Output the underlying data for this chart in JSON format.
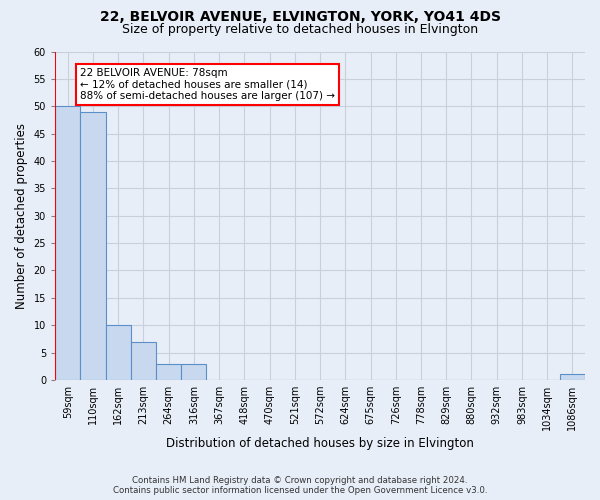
{
  "title": "22, BELVOIR AVENUE, ELVINGTON, YORK, YO41 4DS",
  "subtitle": "Size of property relative to detached houses in Elvington",
  "xlabel": "Distribution of detached houses by size in Elvington",
  "ylabel": "Number of detached properties",
  "bins": [
    "59sqm",
    "110sqm",
    "162sqm",
    "213sqm",
    "264sqm",
    "316sqm",
    "367sqm",
    "418sqm",
    "470sqm",
    "521sqm",
    "572sqm",
    "624sqm",
    "675sqm",
    "726sqm",
    "778sqm",
    "829sqm",
    "880sqm",
    "932sqm",
    "983sqm",
    "1034sqm",
    "1086sqm"
  ],
  "values": [
    50,
    49,
    10,
    7,
    3,
    3,
    0,
    0,
    0,
    0,
    0,
    0,
    0,
    0,
    0,
    0,
    0,
    0,
    0,
    0,
    1
  ],
  "bar_color": "#c8d9ef",
  "bar_edge_color": "#5b8fc9",
  "ylim": [
    0,
    60
  ],
  "yticks": [
    0,
    5,
    10,
    15,
    20,
    25,
    30,
    35,
    40,
    45,
    50,
    55,
    60
  ],
  "red_line_x": -0.5,
  "annotation_title": "22 BELVOIR AVENUE: 78sqm",
  "annotation_line1": "← 12% of detached houses are smaller (14)",
  "annotation_line2": "88% of semi-detached houses are larger (107) →",
  "footer_line1": "Contains HM Land Registry data © Crown copyright and database right 2024.",
  "footer_line2": "Contains public sector information licensed under the Open Government Licence v3.0.",
  "bg_color": "#e8eef8",
  "grid_color": "#c8d0dc",
  "title_fontsize": 10,
  "subtitle_fontsize": 9,
  "axis_label_fontsize": 8.5,
  "tick_fontsize": 7,
  "annotation_fontsize": 7.5
}
